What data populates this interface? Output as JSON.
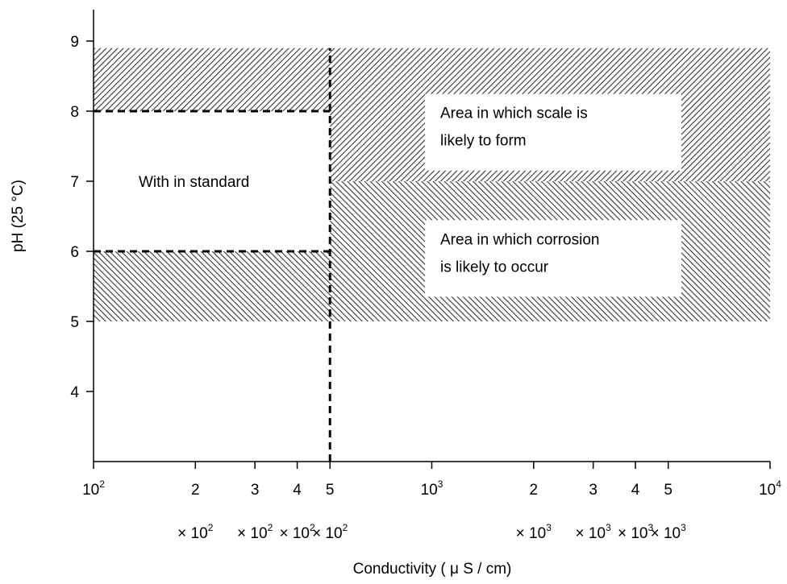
{
  "chart_data": {
    "type": "area",
    "title": "",
    "xlabel": "Conductivity ( μ S / cm)",
    "ylabel": "pH (25 °C)",
    "x_scale": "log",
    "xlim": [
      100,
      10000
    ],
    "ylim": [
      3,
      9
    ],
    "yticks": [
      4,
      5,
      6,
      7,
      8,
      9
    ],
    "xticks": [
      {
        "value": 100,
        "base": "10",
        "exp": "2",
        "mult_base": "",
        "mult_exp": ""
      },
      {
        "value": 200,
        "base": "2",
        "exp": "",
        "mult_base": "× 10",
        "mult_exp": "2"
      },
      {
        "value": 300,
        "base": "3",
        "exp": "",
        "mult_base": "× 10",
        "mult_exp": "2"
      },
      {
        "value": 400,
        "base": "4",
        "exp": "",
        "mult_base": "× 10",
        "mult_exp": "2"
      },
      {
        "value": 500,
        "base": "5",
        "exp": "",
        "mult_base": "× 10",
        "mult_exp": "2"
      },
      {
        "value": 1000,
        "base": "10",
        "exp": "3",
        "mult_base": "",
        "mult_exp": ""
      },
      {
        "value": 2000,
        "base": "2",
        "exp": "",
        "mult_base": "× 10",
        "mult_exp": "3"
      },
      {
        "value": 3000,
        "base": "3",
        "exp": "",
        "mult_base": "× 10",
        "mult_exp": "3"
      },
      {
        "value": 4000,
        "base": "4",
        "exp": "",
        "mult_base": "× 10",
        "mult_exp": "3"
      },
      {
        "value": 5000,
        "base": "5",
        "exp": "",
        "mult_base": "× 10",
        "mult_exp": "3"
      },
      {
        "value": 10000,
        "base": "10",
        "exp": "4",
        "mult_base": "",
        "mult_exp": ""
      }
    ],
    "regions": [
      {
        "name": "scale-upper-left",
        "x": [
          100,
          500
        ],
        "y": [
          8,
          8.9
        ],
        "pattern": "hatch-scale"
      },
      {
        "name": "scale-right",
        "x": [
          500,
          10000
        ],
        "y": [
          7,
          8.9
        ],
        "pattern": "hatch-scale"
      },
      {
        "name": "corrosion-lower-left",
        "x": [
          100,
          500
        ],
        "y": [
          5,
          6
        ],
        "pattern": "hatch-corrosion"
      },
      {
        "name": "corrosion-right",
        "x": [
          500,
          10000
        ],
        "y": [
          5,
          7
        ],
        "pattern": "hatch-corrosion"
      }
    ],
    "dashed_lines": [
      {
        "name": "upper-standard-line",
        "x": [
          100,
          500
        ],
        "y": [
          8,
          8
        ]
      },
      {
        "name": "lower-standard-line",
        "x": [
          100,
          500
        ],
        "y": [
          6,
          6
        ]
      },
      {
        "name": "conductivity-limit-line",
        "x": [
          500,
          500
        ],
        "y": [
          3,
          8.9
        ]
      }
    ],
    "annotations": [
      {
        "name": "within-standard-label",
        "lines": [
          "With in standard"
        ],
        "x": 220,
        "y": 7,
        "box": false
      },
      {
        "name": "scale-area-label",
        "lines": [
          "Area in which scale is",
          "likely to form"
        ],
        "x": 2200,
        "y": 7.9,
        "box": true
      },
      {
        "name": "corrosion-area-label",
        "lines": [
          "Area in which corrosion",
          "is likely to occur"
        ],
        "x": 2200,
        "y": 6.1,
        "box": true
      }
    ]
  }
}
